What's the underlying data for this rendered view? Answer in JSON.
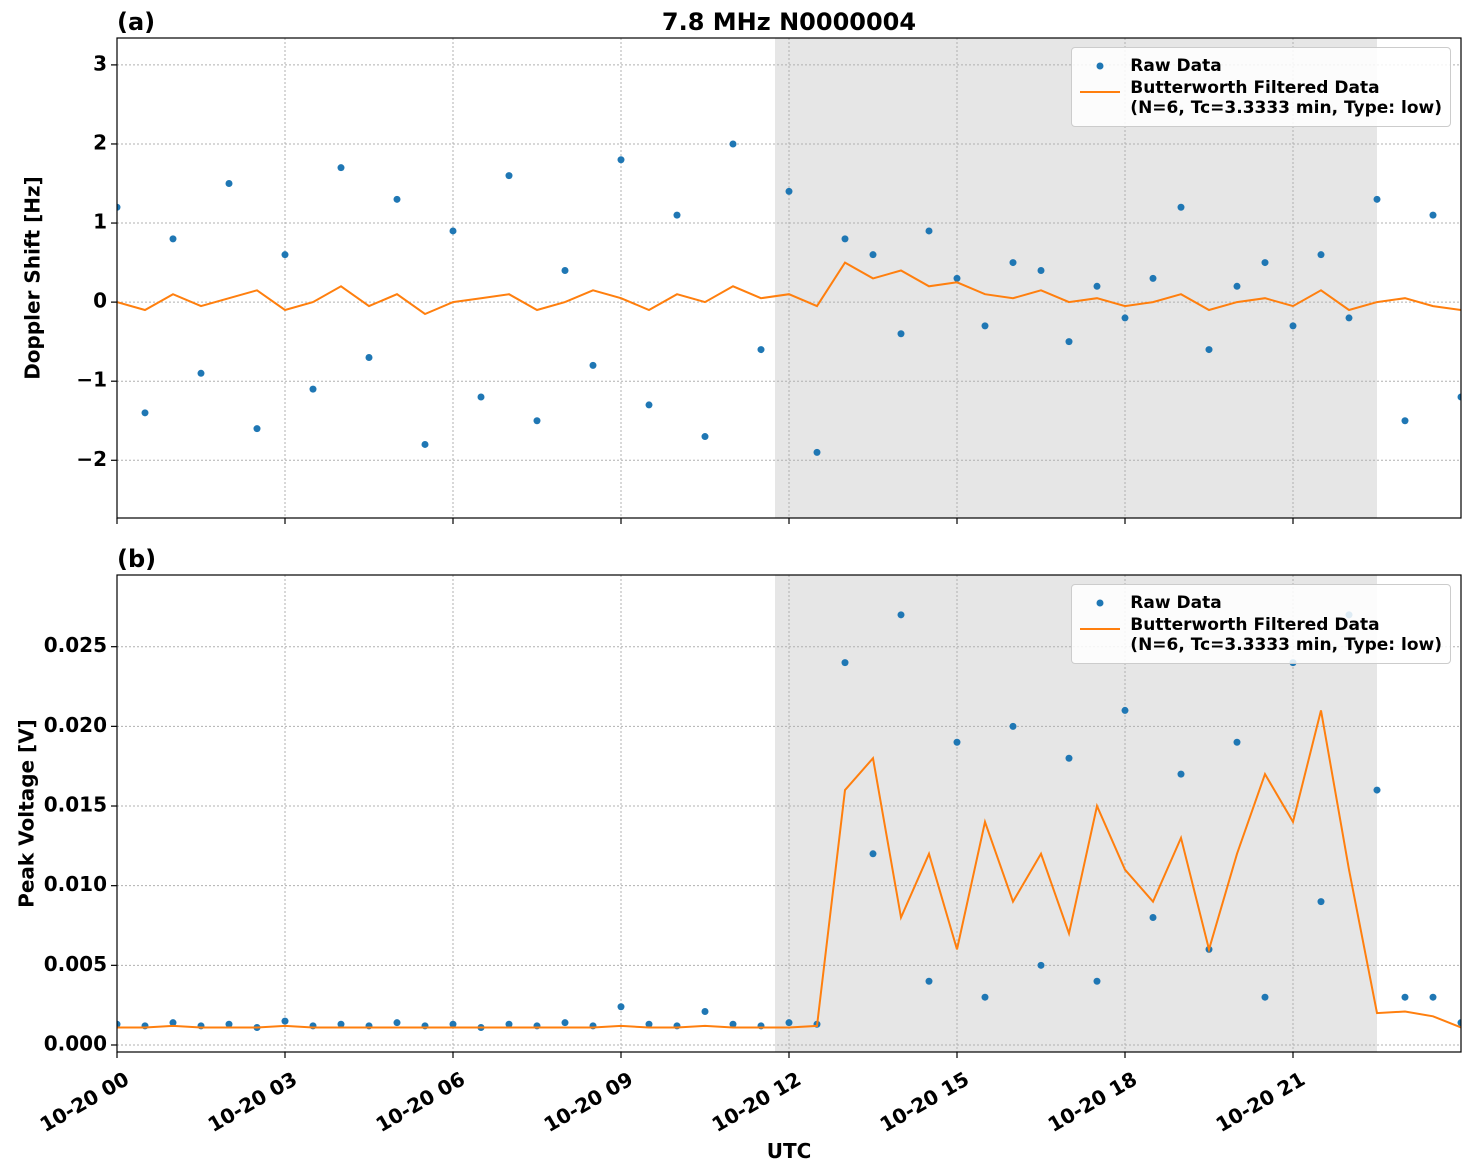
{
  "chart_data": [
    {
      "type": "line",
      "panel_label": "(a)",
      "title": "7.8 MHz N0000004",
      "y_label": "Doppler Shift [Hz]",
      "x": [
        0,
        0.5,
        1,
        1.5,
        2,
        2.5,
        3,
        3.5,
        4,
        4.5,
        5,
        5.5,
        6,
        6.5,
        7,
        7.5,
        8,
        8.5,
        9,
        9.5,
        10,
        10.5,
        11,
        11.5,
        12,
        12.5,
        13,
        13.5,
        14,
        14.5,
        15,
        15.5,
        16,
        16.5,
        17,
        17.5,
        18,
        18.5,
        19,
        19.5,
        20,
        20.5,
        21,
        21.5,
        22,
        22.5,
        23,
        23.5,
        24
      ],
      "series": [
        {
          "name": "Raw Data",
          "mode": "markers",
          "color": "#1f77b4",
          "values": [
            1.2,
            -1.4,
            0.8,
            -0.9,
            1.5,
            -1.6,
            0.6,
            -1.1,
            1.7,
            -0.7,
            1.3,
            -1.8,
            0.9,
            -1.2,
            1.6,
            -1.5,
            0.4,
            -0.8,
            1.8,
            -1.3,
            1.1,
            -1.7,
            2.0,
            -0.6,
            1.4,
            -1.9,
            0.8,
            0.6,
            -0.4,
            0.9,
            0.3,
            -0.3,
            0.5,
            0.4,
            -0.5,
            0.2,
            -0.2,
            0.3,
            1.2,
            -0.6,
            0.2,
            0.5,
            -0.3,
            0.6,
            -0.2,
            1.3,
            -1.5,
            1.1,
            -1.2
          ]
        },
        {
          "name": "Butterworth Filtered Data\n(N=6, Tc=3.3333 min, Type: low)",
          "mode": "line",
          "color": "#ff7f0e",
          "values": [
            0.0,
            -0.1,
            0.1,
            -0.05,
            0.05,
            0.15,
            -0.1,
            0.0,
            0.2,
            -0.05,
            0.1,
            -0.15,
            0.0,
            0.05,
            0.1,
            -0.1,
            0.0,
            0.15,
            0.05,
            -0.1,
            0.1,
            0.0,
            0.2,
            0.05,
            0.1,
            -0.05,
            0.5,
            0.3,
            0.4,
            0.2,
            0.25,
            0.1,
            0.05,
            0.15,
            0.0,
            0.05,
            -0.05,
            0.0,
            0.1,
            -0.1,
            0.0,
            0.05,
            -0.05,
            0.15,
            -0.1,
            0.0,
            0.05,
            -0.05,
            -0.1
          ]
        }
      ],
      "xlim": [
        0,
        24
      ],
      "xticks": [
        0,
        3,
        6,
        9,
        12,
        15,
        18,
        21
      ],
      "ylim": [
        -2.73,
        3.34
      ],
      "yticks": [
        {
          "value": -2,
          "label": "−2"
        },
        {
          "value": -1,
          "label": "−1"
        },
        0,
        1,
        2,
        3
      ],
      "shade": [
        11.75,
        22.5
      ],
      "shade_color": "#e6e6e6",
      "grid": true,
      "legend": "upper right"
    },
    {
      "type": "line",
      "panel_label": "(b)",
      "y_label": "Peak Voltage [V]",
      "x_label": "UTC",
      "x": [
        0,
        0.5,
        1,
        1.5,
        2,
        2.5,
        3,
        3.5,
        4,
        4.5,
        5,
        5.5,
        6,
        6.5,
        7,
        7.5,
        8,
        8.5,
        9,
        9.5,
        10,
        10.5,
        11,
        11.5,
        12,
        12.5,
        13,
        13.5,
        14,
        14.5,
        15,
        15.5,
        16,
        16.5,
        17,
        17.5,
        18,
        18.5,
        19,
        19.5,
        20,
        20.5,
        21,
        21.5,
        22,
        22.5,
        23,
        23.5,
        24
      ],
      "series": [
        {
          "name": "Raw Data",
          "mode": "markers",
          "color": "#1f77b4",
          "values": [
            0.0013,
            0.0012,
            0.0014,
            0.0012,
            0.0013,
            0.0011,
            0.0015,
            0.0012,
            0.0013,
            0.0012,
            0.0014,
            0.0012,
            0.0013,
            0.0011,
            0.0013,
            0.0012,
            0.0014,
            0.0012,
            0.0024,
            0.0013,
            0.0012,
            0.0021,
            0.0013,
            0.0012,
            0.0014,
            0.0013,
            0.024,
            0.012,
            0.027,
            0.004,
            0.019,
            0.003,
            0.02,
            0.005,
            0.018,
            0.004,
            0.021,
            0.008,
            0.017,
            0.006,
            0.019,
            0.003,
            0.024,
            0.009,
            0.027,
            0.016,
            0.003,
            0.003,
            0.0014
          ]
        },
        {
          "name": "Butterworth Filtered Data\n(N=6, Tc=3.3333 min, Type: low)",
          "mode": "line",
          "color": "#ff7f0e",
          "values": [
            0.0011,
            0.0011,
            0.0012,
            0.0011,
            0.0011,
            0.0011,
            0.0012,
            0.0011,
            0.0011,
            0.0011,
            0.0011,
            0.0011,
            0.0011,
            0.0011,
            0.0011,
            0.0011,
            0.0011,
            0.0011,
            0.0012,
            0.0011,
            0.0011,
            0.0012,
            0.0011,
            0.0011,
            0.0011,
            0.0012,
            0.016,
            0.018,
            0.008,
            0.012,
            0.006,
            0.014,
            0.009,
            0.012,
            0.007,
            0.015,
            0.011,
            0.009,
            0.013,
            0.006,
            0.012,
            0.017,
            0.014,
            0.021,
            0.011,
            0.002,
            0.0021,
            0.0018,
            0.0011
          ]
        }
      ],
      "xlim": [
        0,
        24
      ],
      "xticks": [
        {
          "value": 0,
          "label": "10-20 00"
        },
        {
          "value": 3,
          "label": "10-20 03"
        },
        {
          "value": 6,
          "label": "10-20 06"
        },
        {
          "value": 9,
          "label": "10-20 09"
        },
        {
          "value": 12,
          "label": "10-20 12"
        },
        {
          "value": 15,
          "label": "10-20 15"
        },
        {
          "value": 18,
          "label": "10-20 18"
        },
        {
          "value": 21,
          "label": "10-20 21"
        }
      ],
      "ylim": [
        -0.00044,
        0.0295
      ],
      "yticks": [
        {
          "value": 0,
          "label": "0.000"
        },
        0.005,
        {
          "value": 0.01,
          "label": "0.010"
        },
        0.015,
        {
          "value": 0.02,
          "label": "0.020"
        },
        0.025
      ],
      "shade": [
        11.75,
        22.5
      ],
      "shade_color": "#e6e6e6",
      "grid": true,
      "legend": "upper right"
    }
  ]
}
